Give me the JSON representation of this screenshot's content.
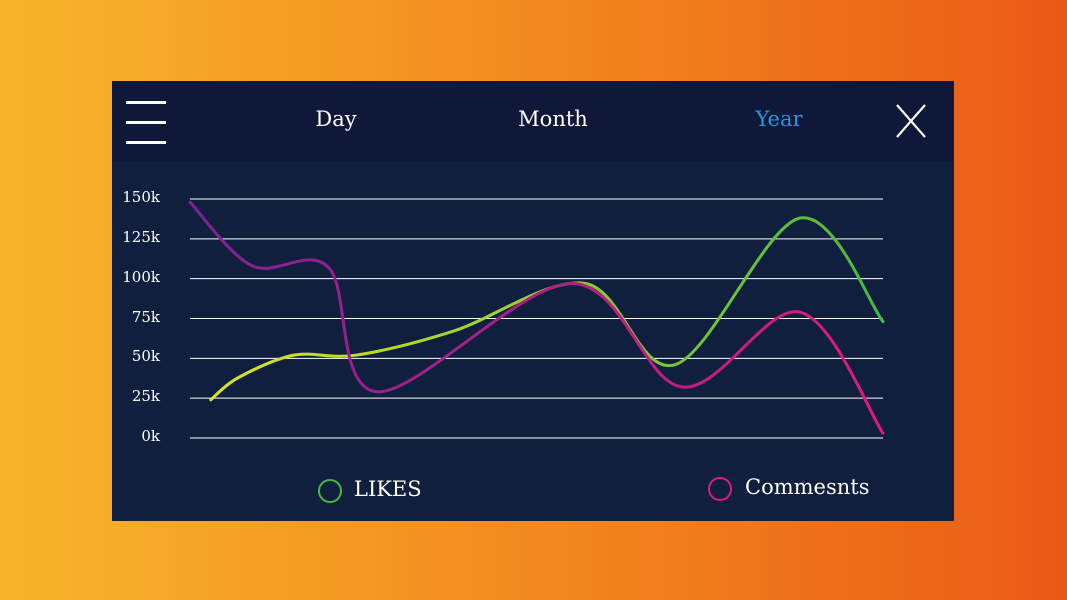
{
  "tabs": [
    {
      "label": "Day",
      "active": false
    },
    {
      "label": "Month",
      "active": false
    },
    {
      "label": "Year",
      "active": true
    }
  ],
  "colors": {
    "background_from": "#f7b52c",
    "background_to": "#ea5a16",
    "panel": "#111f3f",
    "topbar": "#10183a",
    "active_tab": "#1b9be0",
    "likes_start": "#dce51d",
    "likes_end": "#48b83f",
    "comments_start": "#7d2393",
    "comments_end": "#e11a79"
  },
  "icons": {
    "menu": "hamburger-menu-icon",
    "close": "close-x-icon"
  },
  "chart_data": {
    "type": "line",
    "ylim": [
      0,
      150000
    ],
    "y_ticks": [
      {
        "value": 0,
        "label": "0k"
      },
      {
        "value": 25000,
        "label": "25k"
      },
      {
        "value": 50000,
        "label": "50k"
      },
      {
        "value": 75000,
        "label": "75k"
      },
      {
        "value": 100000,
        "label": "100k"
      },
      {
        "value": 125000,
        "label": "125k"
      },
      {
        "value": 150000,
        "label": "150k"
      }
    ],
    "grid": true,
    "legend_placement": "bottom",
    "series": [
      {
        "name": "LIKES",
        "color": "#7cc63a",
        "points": [
          [
            0.03,
            24000
          ],
          [
            0.07,
            38000
          ],
          [
            0.15,
            52000
          ],
          [
            0.24,
            52000
          ],
          [
            0.38,
            67000
          ],
          [
            0.57,
            97000
          ],
          [
            0.7,
            46000
          ],
          [
            0.88,
            138000
          ],
          [
            1.0,
            73000
          ]
        ]
      },
      {
        "name": "Commesnts",
        "color": "#b21e86",
        "points": [
          [
            0.0,
            148000
          ],
          [
            0.09,
            108000
          ],
          [
            0.2,
            107000
          ],
          [
            0.27,
            29000
          ],
          [
            0.55,
            97000
          ],
          [
            0.71,
            32000
          ],
          [
            0.88,
            79000
          ],
          [
            1.0,
            3000
          ]
        ]
      }
    ]
  }
}
